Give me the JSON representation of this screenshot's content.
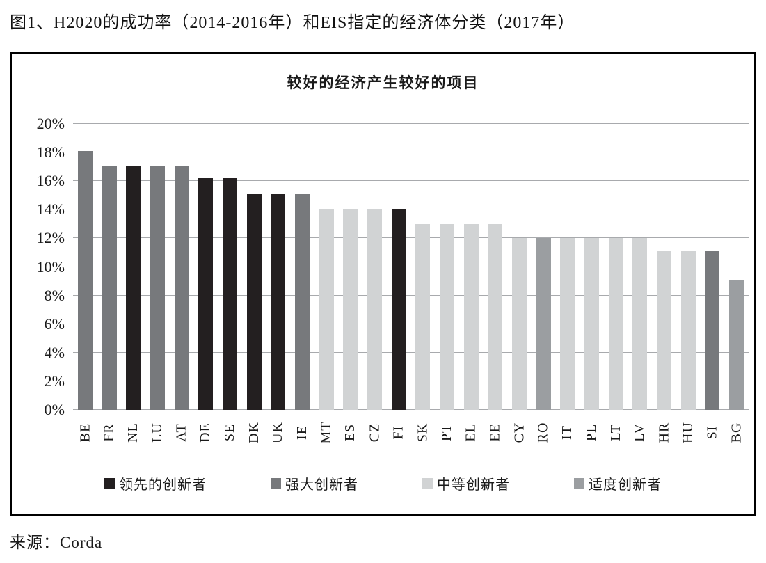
{
  "figure_title": "图1、H2020的成功率（2014-2016年）和EIS指定的经济体分类（2017年）",
  "source": "来源：Corda",
  "chart_data": {
    "type": "bar",
    "title": "较好的经济产生较好的项目",
    "categories": [
      "BE",
      "FR",
      "NL",
      "LU",
      "AT",
      "DE",
      "SE",
      "DK",
      "UK",
      "IE",
      "MT",
      "ES",
      "CZ",
      "FI",
      "SK",
      "PT",
      "EL",
      "EE",
      "CY",
      "RO",
      "IT",
      "PL",
      "LT",
      "LV",
      "HR",
      "HU",
      "SI",
      "BG"
    ],
    "values": [
      18.1,
      17.1,
      17.1,
      17.1,
      17.1,
      16.2,
      16.2,
      15.1,
      15.1,
      15.1,
      14.0,
      14.0,
      14.0,
      14.0,
      13.0,
      13.0,
      13.0,
      13.0,
      12.0,
      12.0,
      12.0,
      12.0,
      12.0,
      12.0,
      11.1,
      11.1,
      11.1,
      9.1
    ],
    "value_unit": "%",
    "groups": [
      "strong",
      "strong",
      "leader",
      "strong",
      "strong",
      "leader",
      "leader",
      "leader",
      "leader",
      "strong",
      "moderate",
      "moderate",
      "moderate",
      "leader",
      "moderate",
      "moderate",
      "moderate",
      "moderate",
      "moderate",
      "modest",
      "moderate",
      "moderate",
      "moderate",
      "moderate",
      "moderate",
      "moderate",
      "strong",
      "modest"
    ],
    "group_colors": {
      "leader": "#231f20",
      "strong": "#77797c",
      "moderate": "#d1d3d4",
      "modest": "#9b9ea1"
    },
    "legend": [
      {
        "key": "leader",
        "label": "领先的创新者"
      },
      {
        "key": "strong",
        "label": "强大创新者"
      },
      {
        "key": "moderate",
        "label": "中等创新者"
      },
      {
        "key": "modest",
        "label": "适度创新者"
      }
    ],
    "y_axis": {
      "min": 0,
      "max": 20,
      "step": 2,
      "ticks": [
        "0%",
        "2%",
        "4%",
        "6%",
        "8%",
        "10%",
        "12%",
        "14%",
        "16%",
        "18%",
        "20%"
      ]
    },
    "xlabel": "",
    "ylabel": "",
    "grid": true,
    "legend_position": "bottom",
    "gridline_color": "#a8aaad"
  }
}
